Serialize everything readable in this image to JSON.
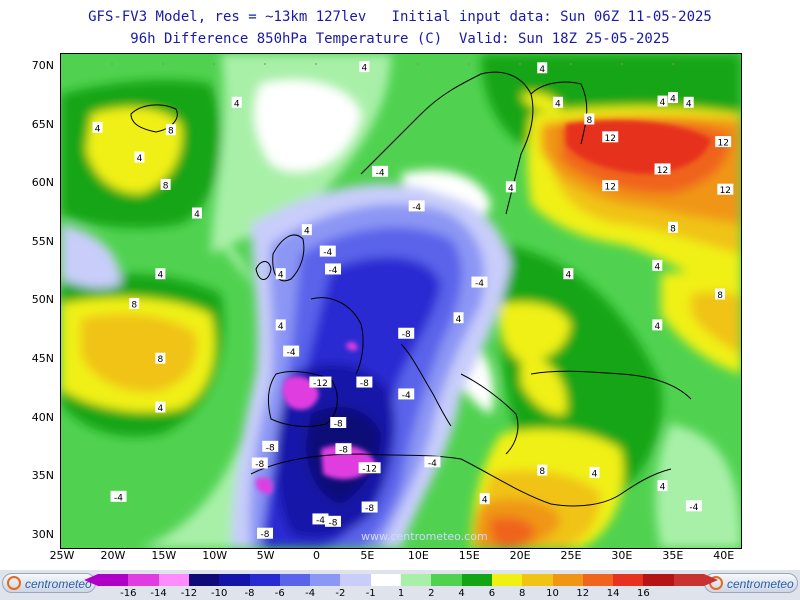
{
  "header": {
    "title_line1": "GFS-FV3 Model, res = ~13km 127lev   Initial input data: Sun 06Z 11-05-2025",
    "title_line2": "96h Difference 850hPa Temperature (C)  Valid: Sun 18Z 25-05-2025"
  },
  "map": {
    "lat_labels": [
      "70N",
      "65N",
      "60N",
      "55N",
      "50N",
      "45N",
      "40N",
      "35N",
      "30N"
    ],
    "lon_labels": [
      "25W",
      "20W",
      "15W",
      "10W",
      "5W",
      "0",
      "5E",
      "10E",
      "15E",
      "20E",
      "25E",
      "30E",
      "35E",
      "40E"
    ],
    "watermark": "www.centrometeo.com",
    "contour_labels": [
      {
        "text": "4",
        "lon": 21.0,
        "lat": 69.8
      },
      {
        "text": "4",
        "lon": -8.2,
        "lat": 66.9
      },
      {
        "text": "4",
        "lon": -21.5,
        "lat": 64.8
      },
      {
        "text": "8",
        "lon": -14.5,
        "lat": 64.6
      },
      {
        "text": "4",
        "lon": -17.5,
        "lat": 62.3
      },
      {
        "text": "8",
        "lon": -15.0,
        "lat": 60.0
      },
      {
        "text": "4",
        "lon": -12.0,
        "lat": 57.6
      },
      {
        "text": "-4",
        "lon": 5.5,
        "lat": 61.1
      },
      {
        "text": "-4",
        "lon": 9.0,
        "lat": 58.2
      },
      {
        "text": "4",
        "lon": 18.0,
        "lat": 59.8
      },
      {
        "text": "4",
        "lon": 22.5,
        "lat": 66.9
      },
      {
        "text": "8",
        "lon": 25.5,
        "lat": 65.5
      },
      {
        "text": "12",
        "lon": 27.5,
        "lat": 64.0
      },
      {
        "text": "12",
        "lon": 27.5,
        "lat": 59.9
      },
      {
        "text": "12",
        "lon": 32.5,
        "lat": 61.3
      },
      {
        "text": "12",
        "lon": 38.3,
        "lat": 63.6
      },
      {
        "text": "12",
        "lon": 38.5,
        "lat": 59.6
      },
      {
        "text": "8",
        "lon": 33.5,
        "lat": 56.4
      },
      {
        "text": "4",
        "lon": 4.0,
        "lat": 69.9
      },
      {
        "text": "4",
        "lon": 32.5,
        "lat": 67.0
      },
      {
        "text": "4",
        "lon": 33.5,
        "lat": 67.3
      },
      {
        "text": "4",
        "lon": 35.0,
        "lat": 66.9
      },
      {
        "text": "-4",
        "lon": 0.5,
        "lat": 54.4
      },
      {
        "text": "4",
        "lon": -15.5,
        "lat": 52.5
      },
      {
        "text": "8",
        "lon": -18.0,
        "lat": 50.0
      },
      {
        "text": "8",
        "lon": -15.5,
        "lat": 45.4
      },
      {
        "text": "4",
        "lon": -15.5,
        "lat": 41.3
      },
      {
        "text": "4",
        "lon": -4.0,
        "lat": 52.5
      },
      {
        "text": "4",
        "lon": -4.0,
        "lat": 48.2
      },
      {
        "text": "-4",
        "lon": 1.0,
        "lat": 52.9
      },
      {
        "text": "-4",
        "lon": 15.0,
        "lat": 51.8
      },
      {
        "text": "4",
        "lon": 13.0,
        "lat": 48.8
      },
      {
        "text": "4",
        "lon": 23.5,
        "lat": 52.5
      },
      {
        "text": "4",
        "lon": 32.0,
        "lat": 53.2
      },
      {
        "text": "8",
        "lon": 38.0,
        "lat": 50.8
      },
      {
        "text": "4",
        "lon": 32.0,
        "lat": 48.2
      },
      {
        "text": "-8",
        "lon": 8.0,
        "lat": 47.5
      },
      {
        "text": "-4",
        "lon": -3.0,
        "lat": 46.0
      },
      {
        "text": "-12",
        "lon": -0.2,
        "lat": 43.4
      },
      {
        "text": "-8",
        "lon": 4.0,
        "lat": 43.4
      },
      {
        "text": "-4",
        "lon": 8.0,
        "lat": 42.4
      },
      {
        "text": "-8",
        "lon": 1.5,
        "lat": 40.0
      },
      {
        "text": "-8",
        "lon": -5.0,
        "lat": 38.0
      },
      {
        "text": "-8",
        "lon": -6.0,
        "lat": 36.6
      },
      {
        "text": "-8",
        "lon": 2.0,
        "lat": 37.8
      },
      {
        "text": "-4",
        "lon": 10.5,
        "lat": 36.7
      },
      {
        "text": "-12",
        "lon": 4.5,
        "lat": 36.2
      },
      {
        "text": "-8",
        "lon": 4.5,
        "lat": 32.9
      },
      {
        "text": "-8",
        "lon": 1.0,
        "lat": 31.7
      },
      {
        "text": "-4",
        "lon": -0.2,
        "lat": 31.9
      },
      {
        "text": "-8",
        "lon": -5.5,
        "lat": 30.7
      },
      {
        "text": "-4",
        "lon": -19.5,
        "lat": 33.8
      },
      {
        "text": "4",
        "lon": 15.5,
        "lat": 33.6
      },
      {
        "text": "8",
        "lon": 21.0,
        "lat": 36.0
      },
      {
        "text": "4",
        "lon": 26.0,
        "lat": 35.8
      },
      {
        "text": "-4",
        "lon": 35.5,
        "lat": 33.0
      },
      {
        "text": "4",
        "lon": 32.5,
        "lat": 34.7
      },
      {
        "text": "4",
        "lon": -1.5,
        "lat": 56.2
      }
    ]
  },
  "legend": {
    "left_logo": "centrometeo",
    "right_logo": "centrometeo",
    "colors": [
      "#b000c8",
      "#e03ce0",
      "#ff8cff",
      "#100a78",
      "#1414a8",
      "#2a2ad2",
      "#5a64ea",
      "#8c96f4",
      "#c8cdfa",
      "#ffffff",
      "#a8f0a8",
      "#50d250",
      "#14a514",
      "#f0f014",
      "#f0c314",
      "#f09614",
      "#f0641e",
      "#e6321e",
      "#b41414",
      "#c83232"
    ],
    "ticks": [
      "-16",
      "-14",
      "-12",
      "-10",
      "-8",
      "-6",
      "-4",
      "-2",
      "-1",
      "1",
      "2",
      "4",
      "6",
      "8",
      "10",
      "12",
      "14",
      "16"
    ]
  }
}
